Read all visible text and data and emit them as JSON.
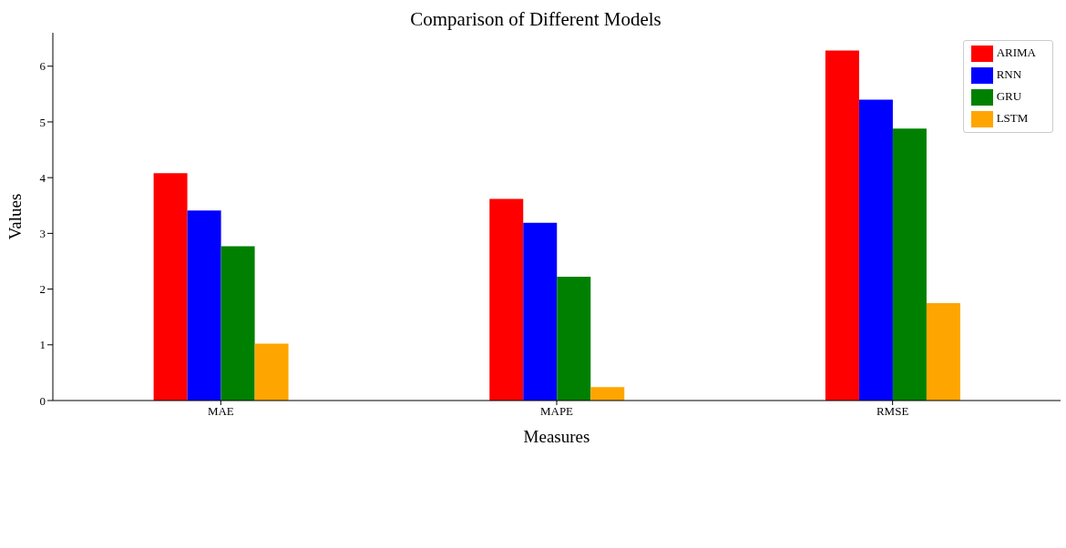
{
  "chart_data": {
    "type": "bar",
    "title": "Comparison of Different Models",
    "xlabel": "Measures",
    "ylabel": "Values",
    "categories": [
      "MAE",
      "MAPE",
      "RMSE"
    ],
    "series": [
      {
        "name": "ARIMA",
        "color": "#ff0000",
        "values": [
          4.08,
          3.62,
          6.28
        ]
      },
      {
        "name": "RNN",
        "color": "#0000ff",
        "values": [
          3.41,
          3.19,
          5.4
        ]
      },
      {
        "name": "GRU",
        "color": "#008000",
        "values": [
          2.77,
          2.22,
          4.88
        ]
      },
      {
        "name": "LSTM",
        "color": "#ffa500",
        "values": [
          1.02,
          0.24,
          1.75
        ]
      }
    ],
    "ylim": [
      0,
      6.6
    ],
    "yticks": [
      0,
      1,
      2,
      3,
      4,
      5,
      6
    ],
    "grid": false,
    "legend": "top right"
  }
}
